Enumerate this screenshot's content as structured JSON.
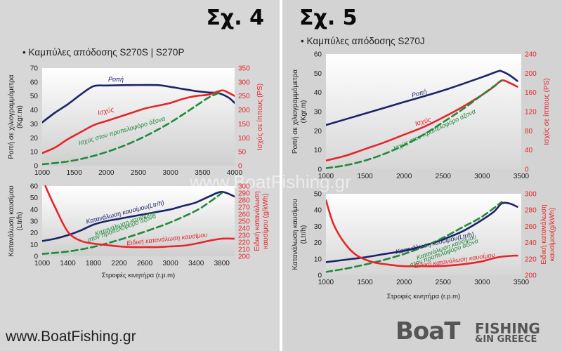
{
  "colors": {
    "blue": "#1c2366",
    "red": "#e5252a",
    "green": "#1f8a3a",
    "axis_red": "#e5252a",
    "tick": "#222222"
  },
  "panels": [
    {
      "figure_label": "Σχ. 4",
      "subtitle": "• Καμπύλες απόδοσης S270S | S270P"
    },
    {
      "figure_label": "Σχ. 5",
      "subtitle": "• Καμπύλες απόδοσης S270J"
    }
  ],
  "footer": {
    "site": "www.BoatFishing.gr",
    "logo_left": "BoaT",
    "logo_top": "FISHING",
    "logo_bottom": "&IN GREECE"
  },
  "background_watermark": "www.BoatFishing.gr",
  "chart_data": [
    {
      "id": "s4-performance",
      "type": "line",
      "xlabel": "",
      "ylabel_left": "Ροπή σε χιλιογραμμόμετρα (Kgr.m)",
      "ylabel_right": "Ισχύς σε ίππους (PS)",
      "xlim": [
        1000,
        4000
      ],
      "xticks": [
        1000,
        1500,
        2000,
        2500,
        3000,
        3500,
        4000
      ],
      "ylim_left": [
        0,
        70
      ],
      "yticks_left": [
        0,
        10,
        20,
        30,
        40,
        50,
        60,
        70
      ],
      "ylim_right": [
        0,
        350
      ],
      "yticks_right": [
        0,
        50,
        100,
        150,
        200,
        250,
        300,
        350
      ],
      "series": [
        {
          "name": "Ροπή",
          "axis": "left",
          "color": "blue",
          "dash": false,
          "x": [
            1000,
            1200,
            1400,
            1600,
            1800,
            2000,
            2400,
            2800,
            3000,
            3200,
            3400,
            3600,
            3750,
            3900,
            4000
          ],
          "y": [
            31,
            38,
            44,
            51,
            57,
            57.5,
            57.8,
            57.8,
            56.5,
            55,
            53.5,
            52.5,
            52,
            49,
            45
          ]
        },
        {
          "name": "Ισχύς",
          "axis": "right",
          "color": "red",
          "dash": false,
          "x": [
            1000,
            1200,
            1400,
            1600,
            1800,
            2000,
            2200,
            2400,
            2600,
            2800,
            3000,
            3200,
            3400,
            3600,
            3800,
            3900,
            4000
          ],
          "y": [
            45,
            65,
            95,
            120,
            145,
            160,
            175,
            190,
            205,
            215,
            225,
            240,
            250,
            255,
            270,
            262,
            250
          ]
        },
        {
          "name": "Ισχύς στον προπελοφόρο άξονα",
          "axis": "right",
          "color": "green",
          "dash": true,
          "x": [
            1000,
            1400,
            1800,
            2200,
            2600,
            3000,
            3400,
            3600,
            3800
          ],
          "y": [
            5,
            15,
            35,
            65,
            105,
            155,
            215,
            245,
            265
          ]
        }
      ],
      "annotations": [
        "Ροπή",
        "Ισχύς",
        "Ισχύς στον προπελοφόρο άξονα"
      ]
    },
    {
      "id": "s4-consumption",
      "type": "line",
      "xlabel": "Στροφές κινητήρα (r.p.m)",
      "ylabel_left": "Κατανάλωση καυσίμου (Ltr/h)",
      "ylabel_right": "Ειδική κατανάλωση καυσίμου (g/kWh)",
      "xlim": [
        1000,
        4000
      ],
      "xticks": [
        1000,
        1400,
        1800,
        2200,
        2600,
        3000,
        3400,
        3800
      ],
      "ylim_left": [
        0,
        60
      ],
      "yticks_left": [
        0,
        10,
        20,
        30,
        40,
        50,
        60
      ],
      "ylim_right": [
        200,
        300
      ],
      "yticks_right": [
        200,
        210,
        220,
        230,
        240,
        250,
        260,
        270,
        280,
        290,
        300
      ],
      "series": [
        {
          "name": "Κατανάλωση καυσίμου(Ltr/h)",
          "axis": "left",
          "color": "blue",
          "dash": false,
          "x": [
            1000,
            1200,
            1400,
            1600,
            1800,
            2000,
            2200,
            2400,
            2600,
            2800,
            3000,
            3200,
            3400,
            3600,
            3800,
            4000
          ],
          "y": [
            13,
            15,
            18,
            22,
            27,
            30,
            32,
            34,
            36,
            38,
            40,
            43,
            46,
            51,
            55,
            51
          ]
        },
        {
          "name": "Κατανάλωση καυσίμου στον προπελοφόρο άξονα",
          "axis": "left",
          "color": "green",
          "dash": true,
          "x": [
            1000,
            1400,
            1800,
            2200,
            2600,
            3000,
            3400,
            3600,
            3800
          ],
          "y": [
            2,
            4,
            8,
            14,
            21,
            29,
            39,
            46,
            54
          ]
        },
        {
          "name": "Ειδική κατανάλωση καυσίμου",
          "axis": "right",
          "color": "red",
          "dash": false,
          "x": [
            1050,
            1200,
            1400,
            1600,
            1800,
            2000,
            2200,
            2400,
            2600,
            2800,
            3000,
            3200,
            3400,
            3600,
            3800,
            4000
          ],
          "y": [
            300,
            270,
            235,
            222,
            218,
            216,
            214,
            213,
            213,
            213,
            214,
            215,
            218,
            222,
            225,
            225
          ]
        }
      ],
      "annotations": [
        "Κατανάλωση καυσίμου(Ltr/h)",
        "Κατανάλωση καυσίμου",
        "στον προπελοφόρο άξονα",
        "Ειδική κατανάλωση καυσίμου"
      ]
    },
    {
      "id": "s5-performance",
      "type": "line",
      "xlabel": "",
      "ylabel_left": "Ροπή σε χιλιογραμμόμετρα (Kgr.m)",
      "ylabel_right": "Ισχύς σε ίππους (PS)",
      "xlim": [
        1000,
        3500
      ],
      "xticks": [
        1000,
        1500,
        2000,
        2500,
        3000,
        3500
      ],
      "ylim_left": [
        0,
        60
      ],
      "yticks_left": [
        0,
        10,
        20,
        30,
        40,
        50,
        60
      ],
      "ylim_right": [
        0,
        240
      ],
      "yticks_right": [
        0,
        40,
        80,
        120,
        160,
        200,
        240
      ],
      "series": [
        {
          "name": "Ροπή",
          "axis": "left",
          "color": "blue",
          "dash": false,
          "x": [
            1000,
            1500,
            2000,
            2500,
            3000,
            3200,
            3250,
            3350,
            3450
          ],
          "y": [
            23,
            29,
            35,
            41,
            48,
            51,
            51,
            49,
            46
          ]
        },
        {
          "name": "Ισχύς",
          "axis": "right",
          "color": "red",
          "dash": false,
          "x": [
            1000,
            1250,
            1500,
            1750,
            2000,
            2250,
            2500,
            2750,
            3000,
            3150,
            3250,
            3350,
            3450
          ],
          "y": [
            18,
            28,
            42,
            56,
            72,
            88,
            108,
            130,
            155,
            172,
            185,
            180,
            172
          ]
        },
        {
          "name": "Ισχύς στον προπελοφόρο άξονα",
          "axis": "right",
          "color": "green",
          "dash": true,
          "x": [
            1000,
            1250,
            1500,
            1750,
            2000,
            2250,
            2500,
            2750,
            3000,
            3250
          ],
          "y": [
            2,
            8,
            18,
            32,
            50,
            72,
            98,
            125,
            155,
            185
          ]
        }
      ],
      "annotations": [
        "Ροπή",
        "Ισχύς",
        "Ισχύς στον προπελοφόρο άξονα"
      ]
    },
    {
      "id": "s5-consumption",
      "type": "line",
      "xlabel": "Στροφές κινητήρα (r.p.m)",
      "ylabel_left": "Κατανάλωση καυσίμου (Ltr/h)",
      "ylabel_right": "Ειδική κατανάλωση καυσίμου(g/kWh)",
      "xlim": [
        1000,
        3500
      ],
      "xticks": [
        1000,
        1500,
        2000,
        2500,
        3000,
        3500
      ],
      "ylim_left": [
        0,
        50
      ],
      "yticks_left": [
        0,
        10,
        20,
        30,
        40,
        50
      ],
      "ylim_right": [
        200,
        300
      ],
      "yticks_right": [
        200,
        220,
        240,
        260,
        280,
        300
      ],
      "series": [
        {
          "name": "Κατανάλωση καυσίμου(Ltr/h)",
          "axis": "left",
          "color": "blue",
          "dash": false,
          "x": [
            1000,
            1250,
            1500,
            1750,
            2000,
            2250,
            2500,
            2750,
            3000,
            3150,
            3250,
            3350,
            3450
          ],
          "y": [
            8,
            9.5,
            11,
            13,
            15,
            18,
            22,
            27,
            34,
            39,
            44,
            44,
            42
          ]
        },
        {
          "name": "Κατανάλωση καυσίμου στον προπελοφόρο άξονα",
          "axis": "left",
          "color": "green",
          "dash": true,
          "x": [
            1000,
            1250,
            1500,
            1750,
            2000,
            2250,
            2500,
            2750,
            3000,
            3250
          ],
          "y": [
            2,
            4,
            6.5,
            9.5,
            13,
            17.5,
            23,
            29.5,
            36,
            45
          ]
        },
        {
          "name": "Ειδική κατανάλωση καυσίμου",
          "axis": "right",
          "color": "red",
          "dash": false,
          "x": [
            1000,
            1100,
            1250,
            1400,
            1600,
            1800,
            2000,
            2200,
            2400,
            2600,
            2800,
            3000,
            3200,
            3400,
            3450
          ],
          "y": [
            292,
            262,
            238,
            224,
            216,
            213,
            211,
            211,
            211,
            212,
            214,
            217,
            222,
            224,
            224
          ]
        }
      ],
      "annotations": [
        "Κατανάλωση καυσίμου(Ltr/h)",
        "Κατανάλωση καυσίμου",
        "στον προπελοφόρο άξονα",
        "Ειδική κατανάλωση καυσίμου"
      ]
    }
  ]
}
